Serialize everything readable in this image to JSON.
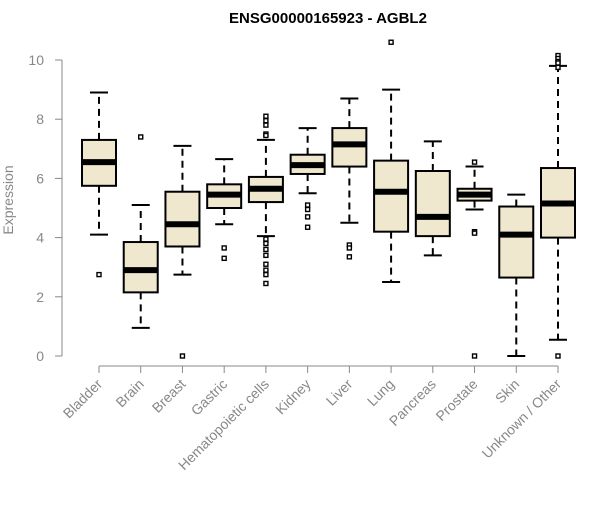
{
  "chart_data": {
    "type": "box",
    "title": "ENSG00000165923 - AGBL2",
    "xlabel": "",
    "ylabel": "Expression",
    "ylim": [
      0,
      10.5
    ],
    "yticks": [
      0,
      2,
      4,
      6,
      8,
      10
    ],
    "box_fill": "#efe8cf",
    "categories": [
      "Bladder",
      "Brain",
      "Breast",
      "Gastric",
      "Hematopoietic cells",
      "Kidney",
      "Liver",
      "Lung",
      "Pancreas",
      "Prostate",
      "Skin",
      "Unknown / Other"
    ],
    "boxes": [
      {
        "whisker_low": 4.1,
        "q1": 5.75,
        "median": 6.55,
        "q3": 7.3,
        "whisker_high": 8.9,
        "outliers": [
          2.75
        ]
      },
      {
        "whisker_low": 0.95,
        "q1": 2.15,
        "median": 2.9,
        "q3": 3.85,
        "whisker_high": 5.1,
        "outliers": [
          7.4
        ]
      },
      {
        "whisker_low": 2.75,
        "q1": 3.7,
        "median": 4.45,
        "q3": 5.55,
        "whisker_high": 7.1,
        "outliers": [
          0.0
        ]
      },
      {
        "whisker_low": 4.45,
        "q1": 5.0,
        "median": 5.45,
        "q3": 5.8,
        "whisker_high": 6.65,
        "outliers": [
          3.65,
          3.3
        ]
      },
      {
        "whisker_low": 4.05,
        "q1": 5.2,
        "median": 5.65,
        "q3": 6.05,
        "whisker_high": 7.3,
        "outliers": [
          8.1,
          7.95,
          7.8,
          7.5,
          7.45,
          3.95,
          3.8,
          3.6,
          3.4,
          3.1,
          2.9,
          2.75,
          2.45
        ]
      },
      {
        "whisker_low": 5.5,
        "q1": 6.15,
        "median": 6.45,
        "q3": 6.8,
        "whisker_high": 7.7,
        "outliers": [
          5.1,
          4.95,
          4.7,
          4.35
        ]
      },
      {
        "whisker_low": 4.5,
        "q1": 6.4,
        "median": 7.15,
        "q3": 7.7,
        "whisker_high": 8.7,
        "outliers": [
          3.75,
          3.65,
          3.35
        ]
      },
      {
        "whisker_low": 2.5,
        "q1": 4.2,
        "median": 5.55,
        "q3": 6.6,
        "whisker_high": 9.0,
        "outliers": [
          10.6
        ]
      },
      {
        "whisker_low": 3.4,
        "q1": 4.05,
        "median": 4.7,
        "q3": 6.25,
        "whisker_high": 7.25,
        "outliers": []
      },
      {
        "whisker_low": 4.95,
        "q1": 5.25,
        "median": 5.45,
        "q3": 5.65,
        "whisker_high": 6.4,
        "outliers": [
          6.55,
          4.2,
          4.15,
          0.0
        ]
      },
      {
        "whisker_low": 0.0,
        "q1": 2.65,
        "median": 4.1,
        "q3": 5.05,
        "whisker_high": 5.45,
        "outliers": []
      },
      {
        "whisker_low": 0.55,
        "q1": 4.0,
        "median": 5.15,
        "q3": 6.35,
        "whisker_high": 9.8,
        "outliers": [
          10.15,
          10.05,
          9.95,
          9.9,
          9.75,
          0.0
        ]
      }
    ]
  }
}
